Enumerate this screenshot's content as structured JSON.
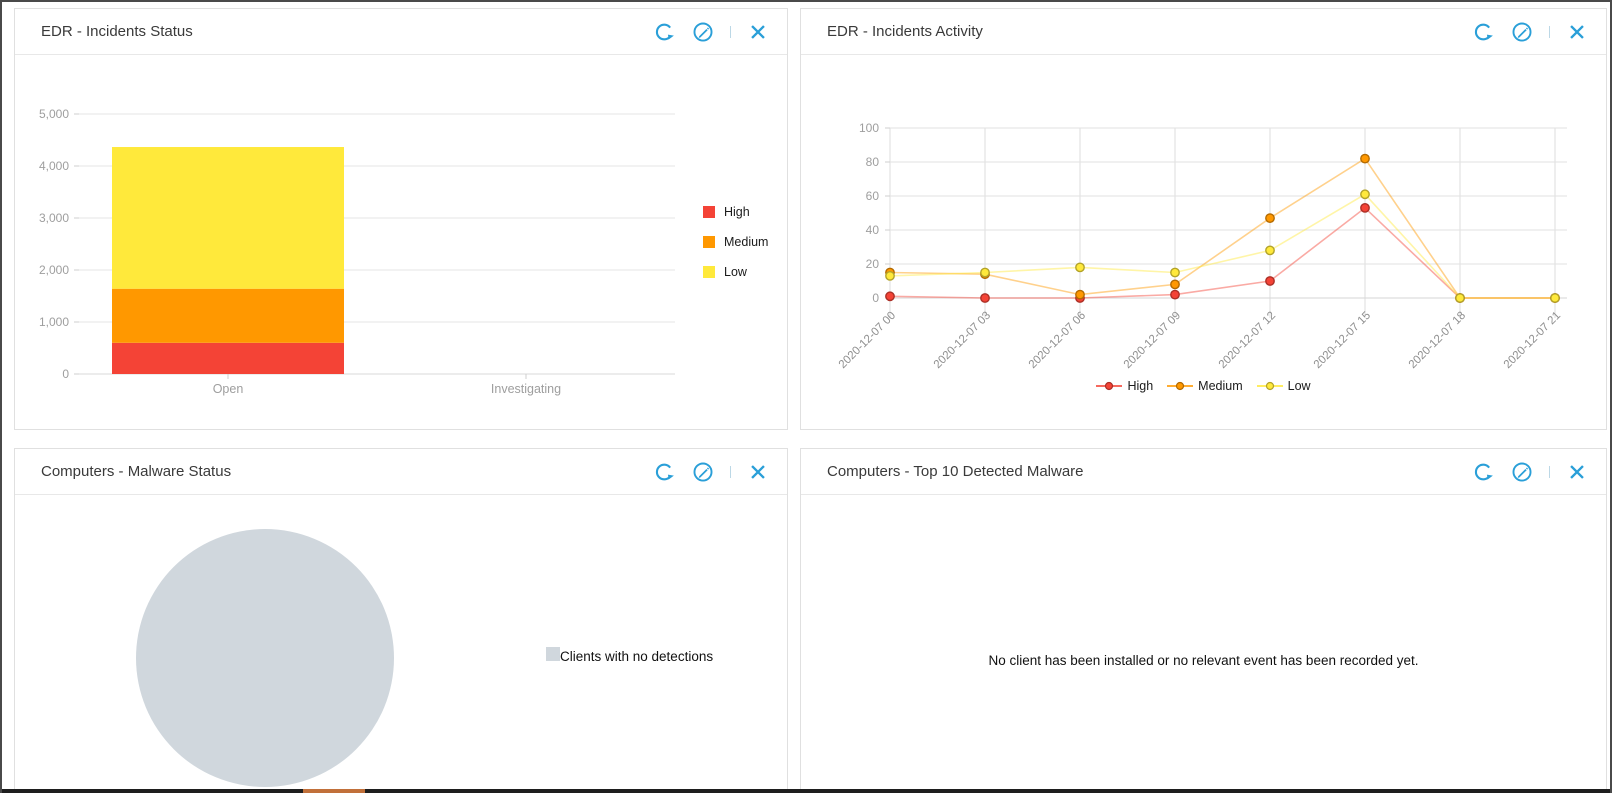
{
  "colors": {
    "accent_blue": "#2a9fd8",
    "high": "#f44336",
    "medium": "#ff9800",
    "low": "#ffe93b",
    "no_detections": "#d0d7dd",
    "bottom_edge_accent": "#c1703a"
  },
  "icons": {
    "refresh": "circular-arrow-refresh-icon",
    "edit": "pencil-in-circle-icon",
    "close": "x-close-icon",
    "divider": "vertical-divider"
  },
  "panels": [
    {
      "title": "EDR - Incidents Status",
      "actions": [
        "refresh",
        "edit",
        "close"
      ]
    },
    {
      "title": "EDR - Incidents Activity",
      "actions": [
        "refresh",
        "edit",
        "close"
      ]
    },
    {
      "title": "Computers - Malware Status",
      "actions": [
        "refresh",
        "edit",
        "close"
      ]
    },
    {
      "title": "Computers - Top 10 Detected Malware",
      "actions": [
        "refresh",
        "edit",
        "close"
      ]
    }
  ],
  "chart_data": [
    {
      "type": "bar",
      "stacked": true,
      "title": "EDR - Incidents Status",
      "categories": [
        "Open",
        "Investigating"
      ],
      "series": [
        {
          "name": "High",
          "color": "#f44336",
          "values": [
            600,
            0
          ]
        },
        {
          "name": "Medium",
          "color": "#ff9800",
          "values": [
            1040,
            0
          ]
        },
        {
          "name": "Low",
          "color": "#ffe93b",
          "values": [
            2725,
            0
          ]
        }
      ],
      "ylim": [
        0,
        5000
      ],
      "yticks": [
        0,
        1000,
        2000,
        3000,
        4000,
        5000
      ],
      "grid": true,
      "legend_position": "right"
    },
    {
      "type": "line",
      "title": "EDR - Incidents Activity",
      "x": [
        "2020-12-07 00",
        "2020-12-07 03",
        "2020-12-07 06",
        "2020-12-07 09",
        "2020-12-07 12",
        "2020-12-07 15",
        "2020-12-07 18",
        "2020-12-07 21"
      ],
      "series": [
        {
          "name": "High",
          "color": "#f44336",
          "values": [
            1,
            0,
            0,
            2,
            10,
            53,
            0,
            0
          ]
        },
        {
          "name": "Medium",
          "color": "#ff9800",
          "values": [
            15,
            14,
            2,
            8,
            47,
            82,
            0,
            0
          ]
        },
        {
          "name": "Low",
          "color": "#ffe93b",
          "values": [
            13,
            15,
            18,
            15,
            28,
            61,
            0,
            0
          ]
        }
      ],
      "ylim": [
        0,
        100
      ],
      "yticks": [
        0,
        20,
        40,
        60,
        80,
        100
      ],
      "grid": true,
      "legend_position": "bottom"
    },
    {
      "type": "pie",
      "title": "Computers - Malware Status",
      "slices": [
        {
          "label": "Clients with no detections",
          "value": 100,
          "color": "#d0d7dd"
        }
      ],
      "legend_position": "right"
    },
    {
      "type": "empty",
      "title": "Computers - Top 10 Detected Malware",
      "message": "No client has been installed or no relevant event has been recorded yet."
    }
  ]
}
